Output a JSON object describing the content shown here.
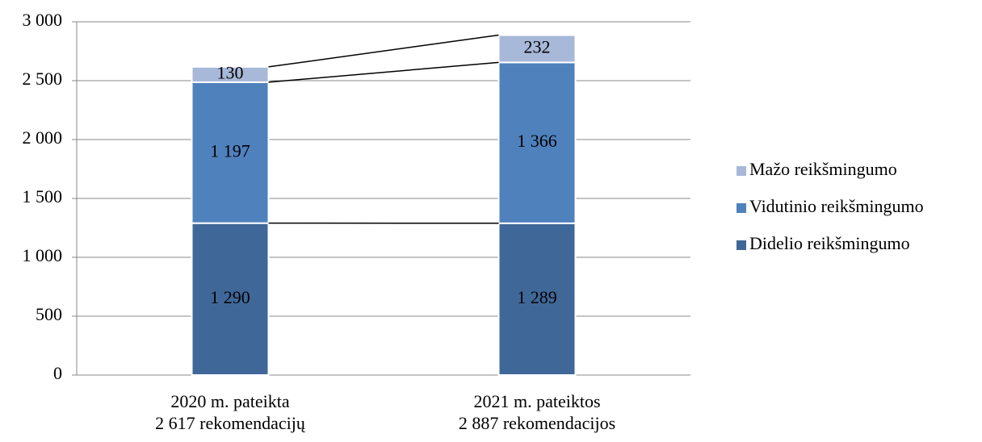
{
  "chart_data": {
    "type": "stacked_bar",
    "categories": [
      "2020 m. pateikta\n2 617 rekomendacijų",
      "2021 m. pateiktos\n2 887 rekomendacijos"
    ],
    "series": [
      {
        "name": "Didelio reikšmingumo",
        "color": "#3f6899",
        "values": [
          1290,
          1289
        ],
        "value_labels": [
          "1 290",
          "1 289"
        ]
      },
      {
        "name": "Vidutinio reikšmingumo",
        "color": "#4f81bd",
        "values": [
          1197,
          1366
        ],
        "value_labels": [
          "1 197",
          "1 366"
        ]
      },
      {
        "name": "Mažo reikšmingumo",
        "color": "#a7b8d8",
        "values": [
          130,
          232
        ]
      }
    ],
    "ylim": [
      0,
      3000
    ],
    "yticks": [
      0,
      500,
      {
        "value": 1000,
        "label": "1 000"
      },
      {
        "value": 1500,
        "label": "1 500"
      },
      {
        "value": 2000,
        "label": "2 000"
      },
      {
        "value": 2500,
        "label": "2 500"
      },
      {
        "value": 3000,
        "label": "3 000"
      }
    ],
    "grid": true,
    "series_lines": true,
    "legend": "right"
  }
}
